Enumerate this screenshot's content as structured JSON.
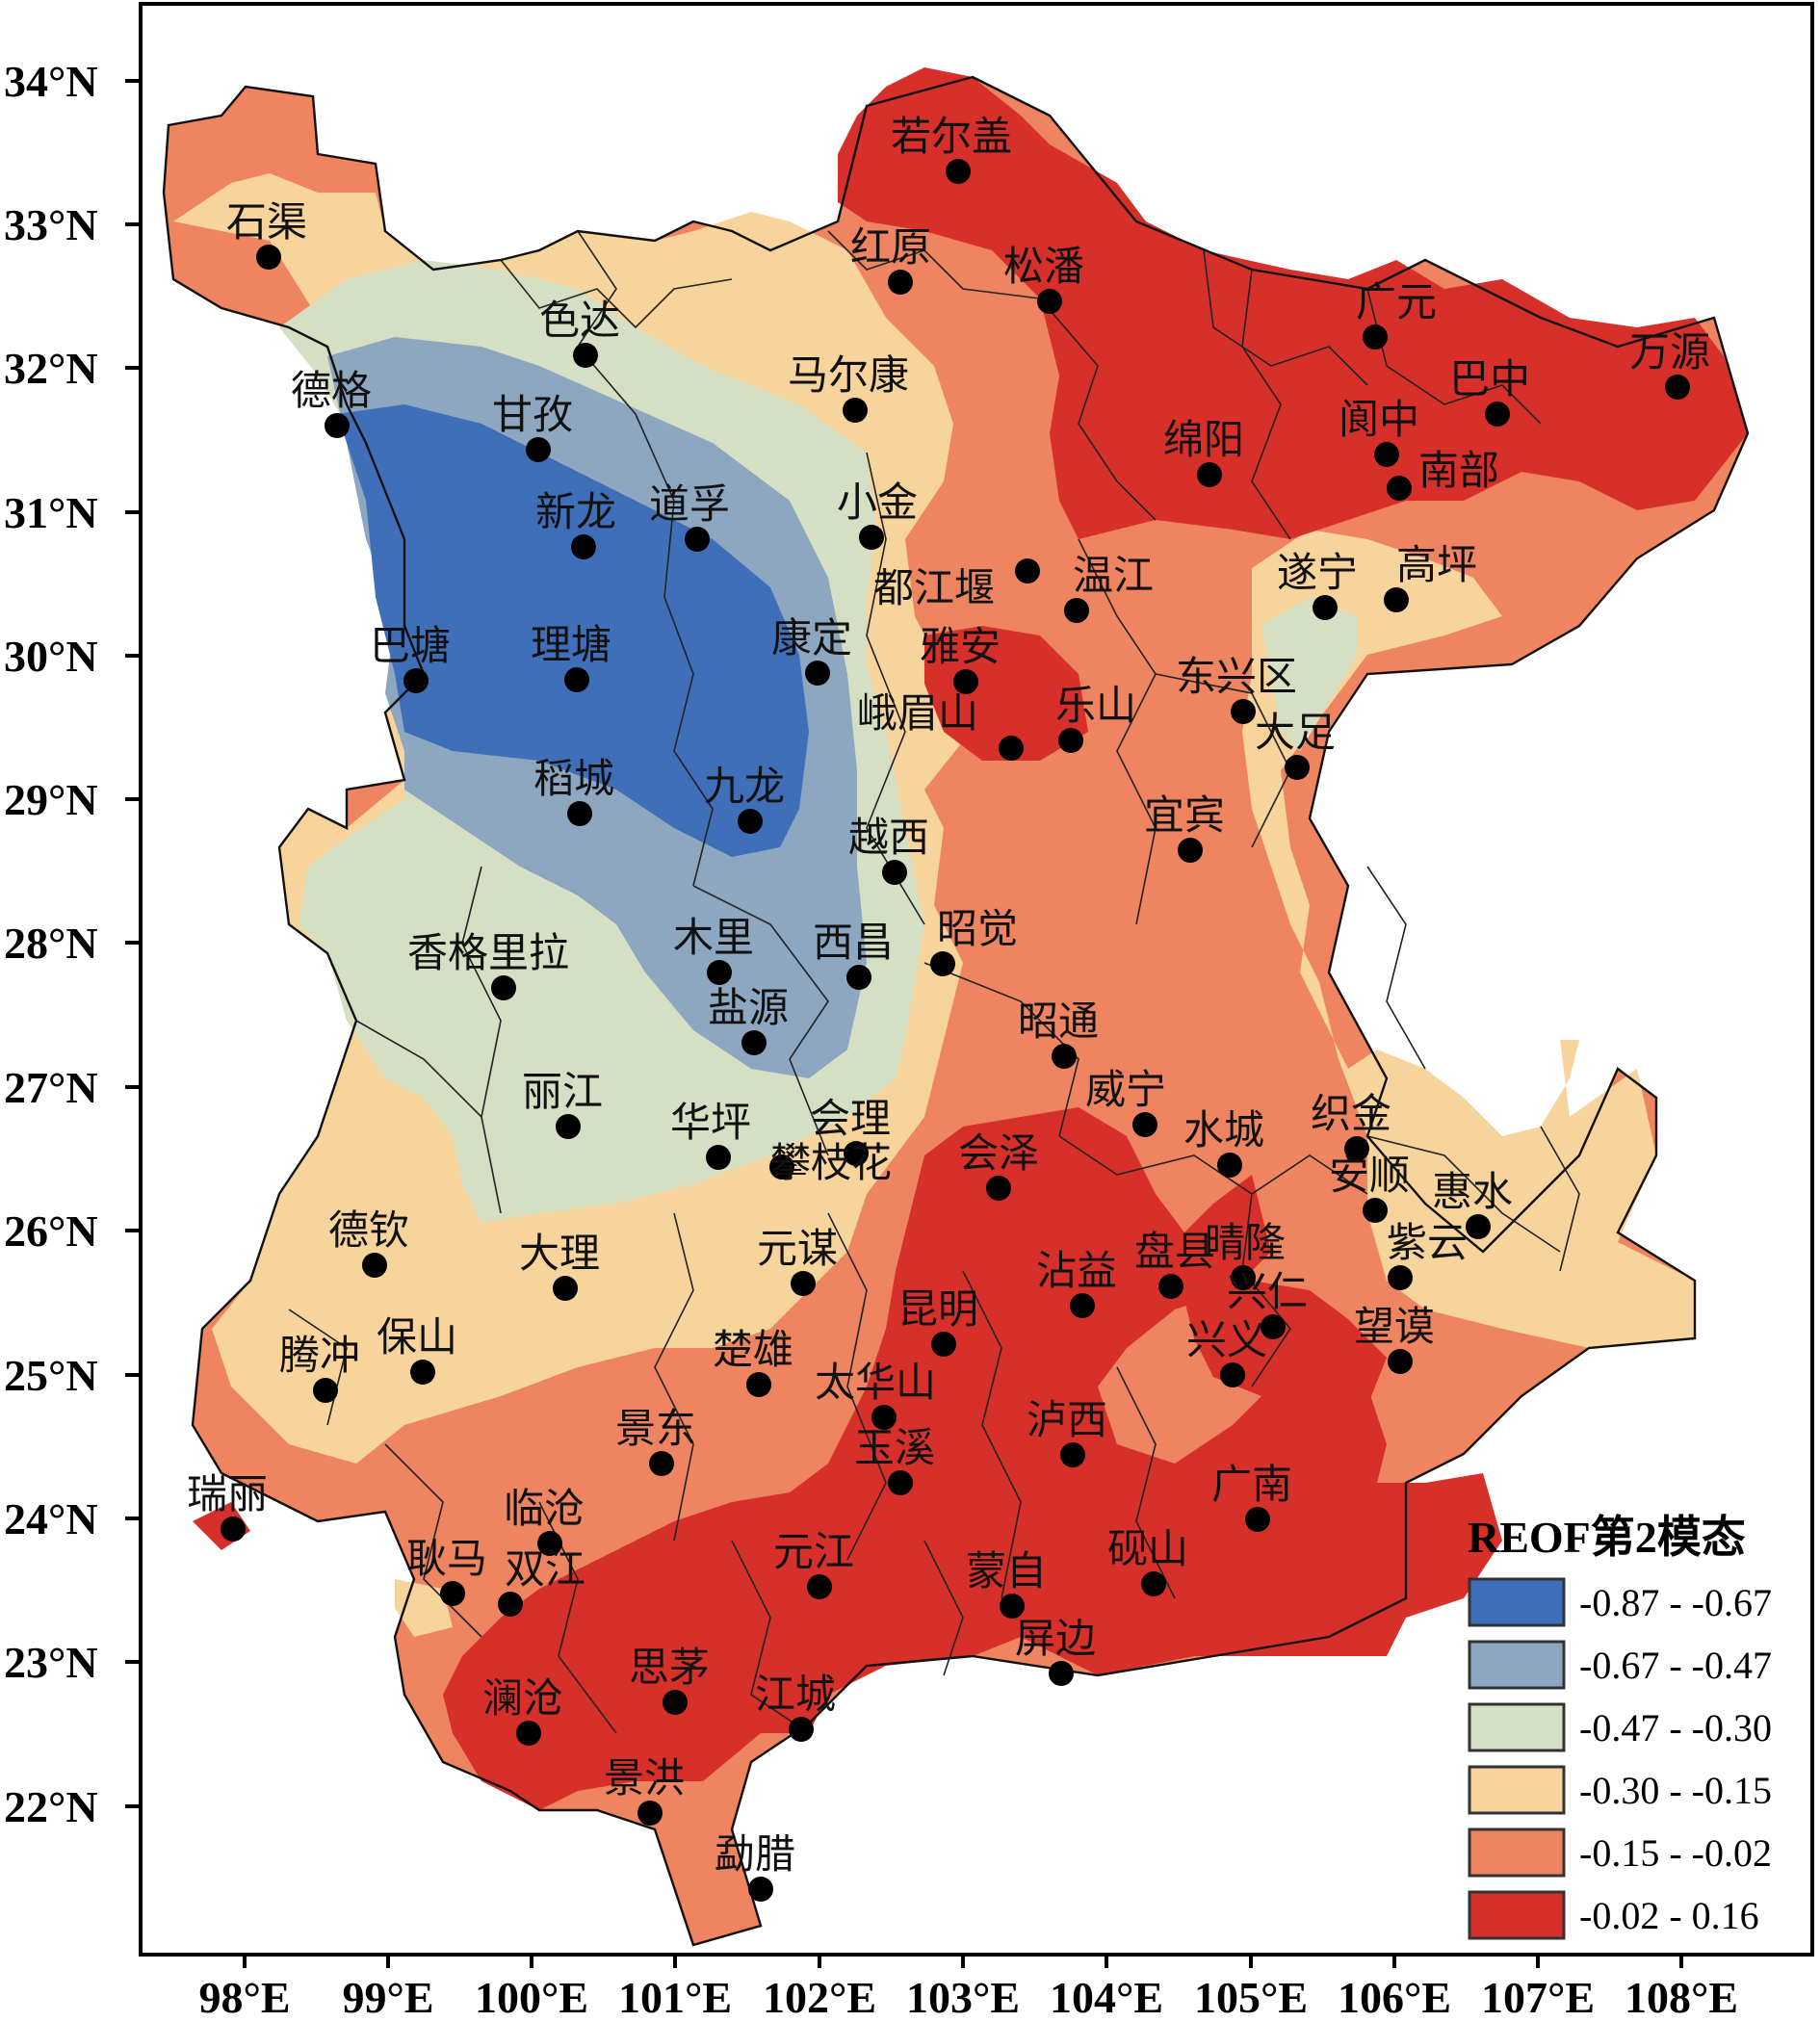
{
  "map": {
    "lat_labels": [
      "34°N",
      "33°N",
      "32°N",
      "31°N",
      "30°N",
      "29°N",
      "28°N",
      "27°N",
      "26°N",
      "25°N",
      "24°N",
      "23°N",
      "22°N"
    ],
    "lon_labels": [
      "98°E",
      "99°E",
      "100°E",
      "101°E",
      "102°E",
      "103°E",
      "104°E",
      "105°E",
      "106°E",
      "107°E",
      "108°E"
    ],
    "legend": {
      "title": "REOF第2模态",
      "classes": [
        {
          "label": "-0.87 - -0.67",
          "color": "#3f6fb8"
        },
        {
          "label": "-0.67 - -0.47",
          "color": "#8ea7c1"
        },
        {
          "label": "-0.47 - -0.30",
          "color": "#d5dfc4"
        },
        {
          "label": "-0.30 - -0.15",
          "color": "#f6d49c"
        },
        {
          "label": "-0.15 - -0.02",
          "color": "#ee8460"
        },
        {
          "label": "-0.02 - 0.16",
          "color": "#d7302a"
        }
      ]
    },
    "stations": [
      "石渠",
      "若尔盖",
      "红原",
      "松潘",
      "色达",
      "德格",
      "甘孜",
      "马尔康",
      "广元",
      "巴中",
      "万源",
      "绵阳",
      "阆中",
      "南部",
      "新龙",
      "道孚",
      "小金",
      "都江堰",
      "温江",
      "遂宁",
      "高坪",
      "巴塘",
      "理塘",
      "康定",
      "雅安",
      "东兴区",
      "峨眉山",
      "乐山",
      "大足",
      "稻城",
      "九龙",
      "宜宾",
      "越西",
      "香格里拉",
      "木里",
      "西昌",
      "昭觉",
      "盐源",
      "昭通",
      "丽江",
      "华坪",
      "会理",
      "攀枝花",
      "会泽",
      "威宁",
      "水城",
      "织金",
      "安顺",
      "惠水",
      "紫云",
      "德钦",
      "大理",
      "元谋",
      "沾益",
      "盘县",
      "晴隆",
      "兴仁",
      "保山",
      "腾冲",
      "楚雄",
      "昆明",
      "望谟",
      "兴义",
      "太华山",
      "景东",
      "泸西",
      "瑞丽",
      "玉溪",
      "广南",
      "临沧",
      "元江",
      "砚山",
      "耿马",
      "双江",
      "蒙自",
      "屏边",
      "思茅",
      "澜沧",
      "江城",
      "景洪",
      "勐腊"
    ]
  }
}
